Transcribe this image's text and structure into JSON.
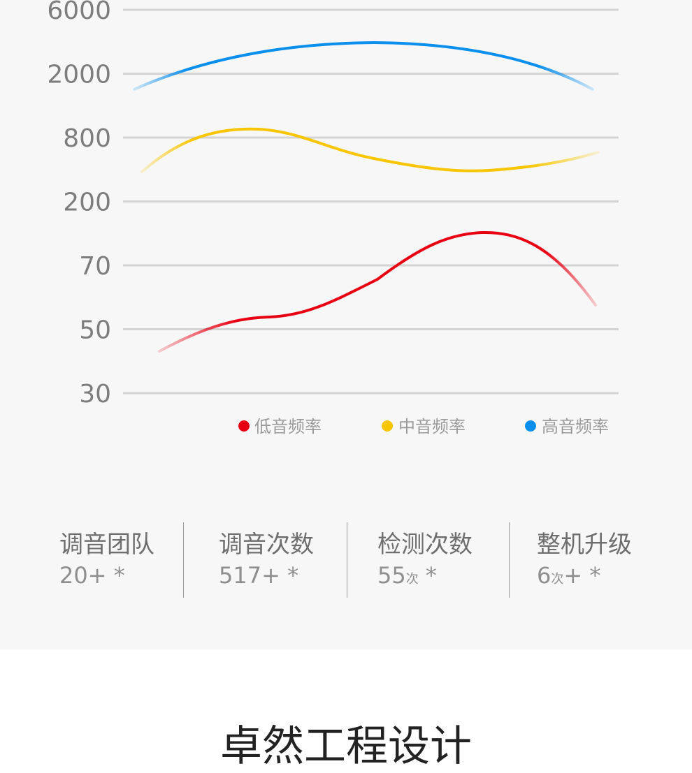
{
  "chart_data": {
    "type": "line",
    "y_tick_labels": [
      "6000",
      "2000",
      "800",
      "200",
      "70",
      "50",
      "30"
    ],
    "grid": true,
    "legend_position": "bottom-right",
    "series": [
      {
        "name": "低音频率",
        "color": "#e60012",
        "shape": "rise-then-peak-then-fall"
      },
      {
        "name": "中音频率",
        "color": "#f7c600",
        "shape": "peak-then-dip-then-rise"
      },
      {
        "name": "高音频率",
        "color": "#0a8fec",
        "shape": "arc"
      }
    ]
  },
  "stats": [
    {
      "label": "调音团队",
      "value": "20+",
      "unit": "",
      "suffix": " *"
    },
    {
      "label": "调音次数",
      "value": "517+",
      "unit": "",
      "suffix": " *"
    },
    {
      "label": "检测次数",
      "value": "55",
      "unit": "次",
      "suffix": " *"
    },
    {
      "label": "整机升级",
      "value": "6",
      "unit": "次",
      "suffix": "+ *"
    }
  ],
  "bottom_title": "卓然工程设计"
}
